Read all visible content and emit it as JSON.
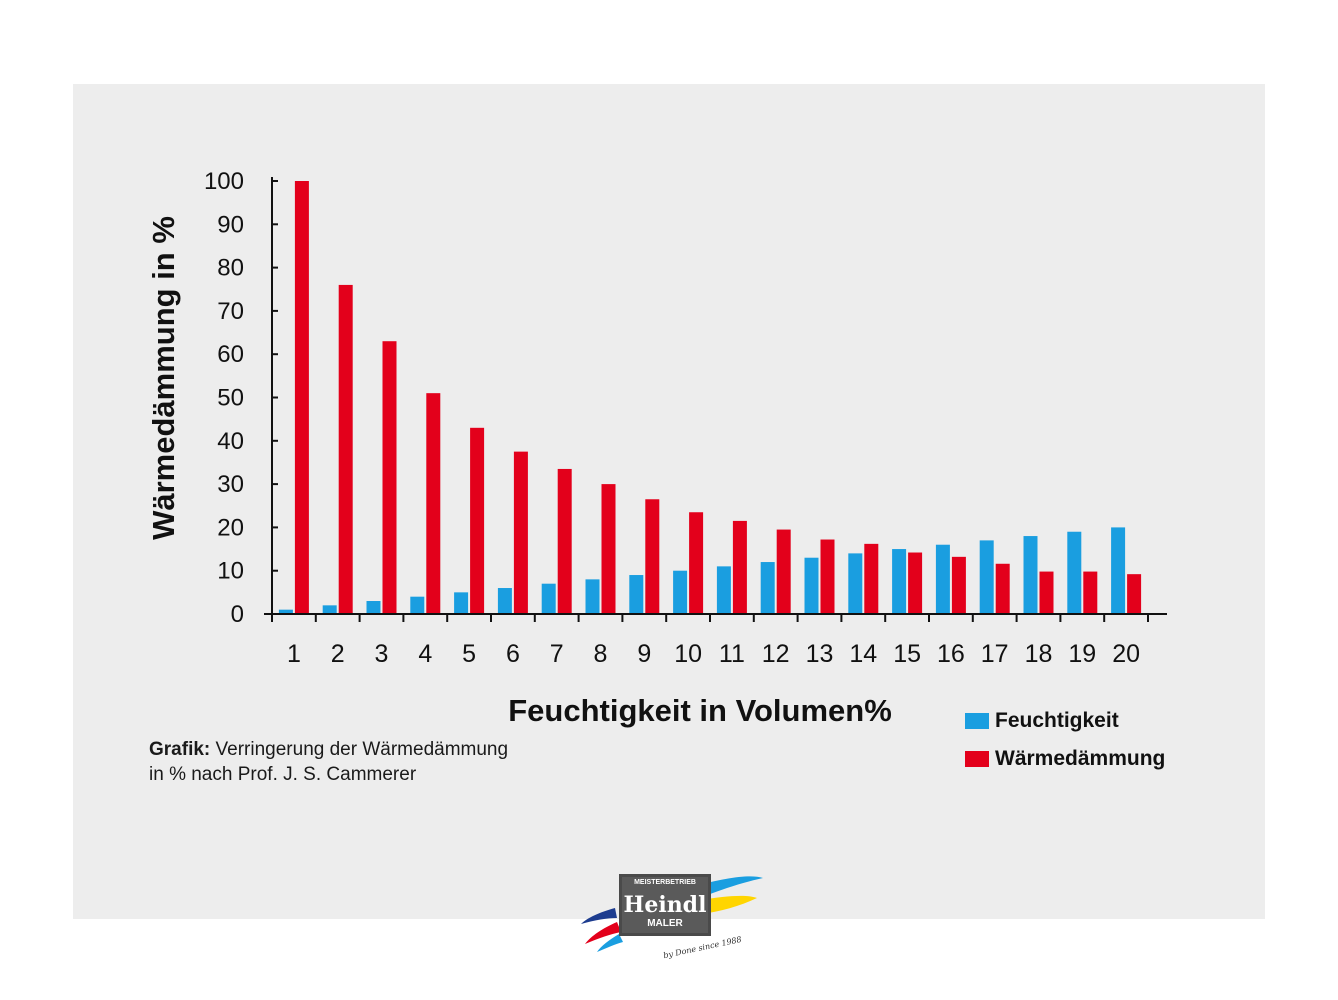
{
  "chart_data": {
    "type": "bar",
    "xlabel": "Feuchtigkeit in Volumen%",
    "ylabel": "Wärmedämmung in %",
    "ylim": [
      0,
      100
    ],
    "yticks": [
      "0",
      "10",
      "20",
      "30",
      "40",
      "50",
      "60",
      "70",
      "80",
      "90",
      "100"
    ],
    "categories": [
      "1",
      "2",
      "3",
      "4",
      "5",
      "6",
      "7",
      "8",
      "9",
      "10",
      "11",
      "12",
      "13",
      "14",
      "15",
      "16",
      "17",
      "18",
      "19",
      "20"
    ],
    "series": [
      {
        "name": "Feuchtigkeit",
        "color": "#1a9ee0",
        "values": [
          1,
          2,
          3,
          4,
          5,
          6,
          7,
          8,
          9,
          10,
          11,
          12,
          13,
          14,
          15,
          16,
          17,
          18,
          19,
          20
        ]
      },
      {
        "name": "Wärmedämmung",
        "color": "#e3001b",
        "values": [
          100,
          76,
          63,
          51,
          43,
          37.5,
          33.5,
          30,
          26.5,
          23.5,
          21.5,
          19.5,
          17.2,
          16.2,
          14.2,
          13.2,
          11.6,
          9.8,
          9.8,
          9.2
        ]
      }
    ],
    "grid": false,
    "legend_position": "bottom-right"
  },
  "caption": {
    "bold": "Grafik:",
    "line1": " Verringerung der Wärmedämmung",
    "line2": "in % nach Prof. J. S. Cammerer"
  },
  "logo": {
    "top_text": "MEISTERBETRIEB",
    "name": "Heindl",
    "sub": "MALER",
    "script": "by Done since 1988",
    "colors": [
      "#1a9ee0",
      "#ffd500",
      "#e3001b",
      "#1d3c8f"
    ]
  }
}
